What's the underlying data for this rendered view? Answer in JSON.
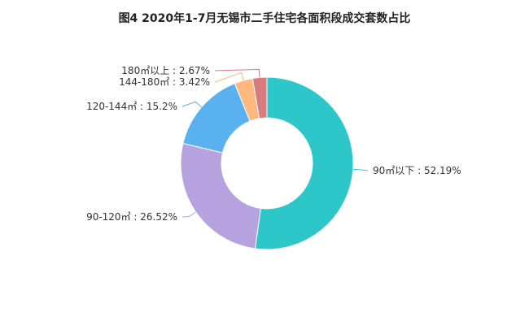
{
  "title": "图4 2020年1-7月无锡市二手住宅各面积段成交套数占比",
  "chart_data": {
    "type": "pie",
    "donut": true,
    "start_angle_deg": 90,
    "direction": "clockwise",
    "slices": [
      {
        "name": "90㎡以下",
        "value": 52.19,
        "label": "90㎡以下 : 52.19%",
        "color": "#2ec7c9",
        "side": "right"
      },
      {
        "name": "90-120㎡",
        "value": 26.52,
        "label": "90-120㎡ : 26.52%",
        "color": "#b6a2de",
        "side": "left"
      },
      {
        "name": "120-144㎡",
        "value": 15.2,
        "label": "120-144㎡ : 15.2%",
        "color": "#5ab1ef",
        "side": "left"
      },
      {
        "name": "144-180㎡",
        "value": 3.42,
        "label": "144-180㎡ : 3.42%",
        "color": "#ffb980",
        "side": "left"
      },
      {
        "name": "180㎡以上",
        "value": 2.67,
        "label": "180㎡以上 : 2.67%",
        "color": "#d87a80",
        "side": "left"
      }
    ],
    "legend": "none"
  }
}
